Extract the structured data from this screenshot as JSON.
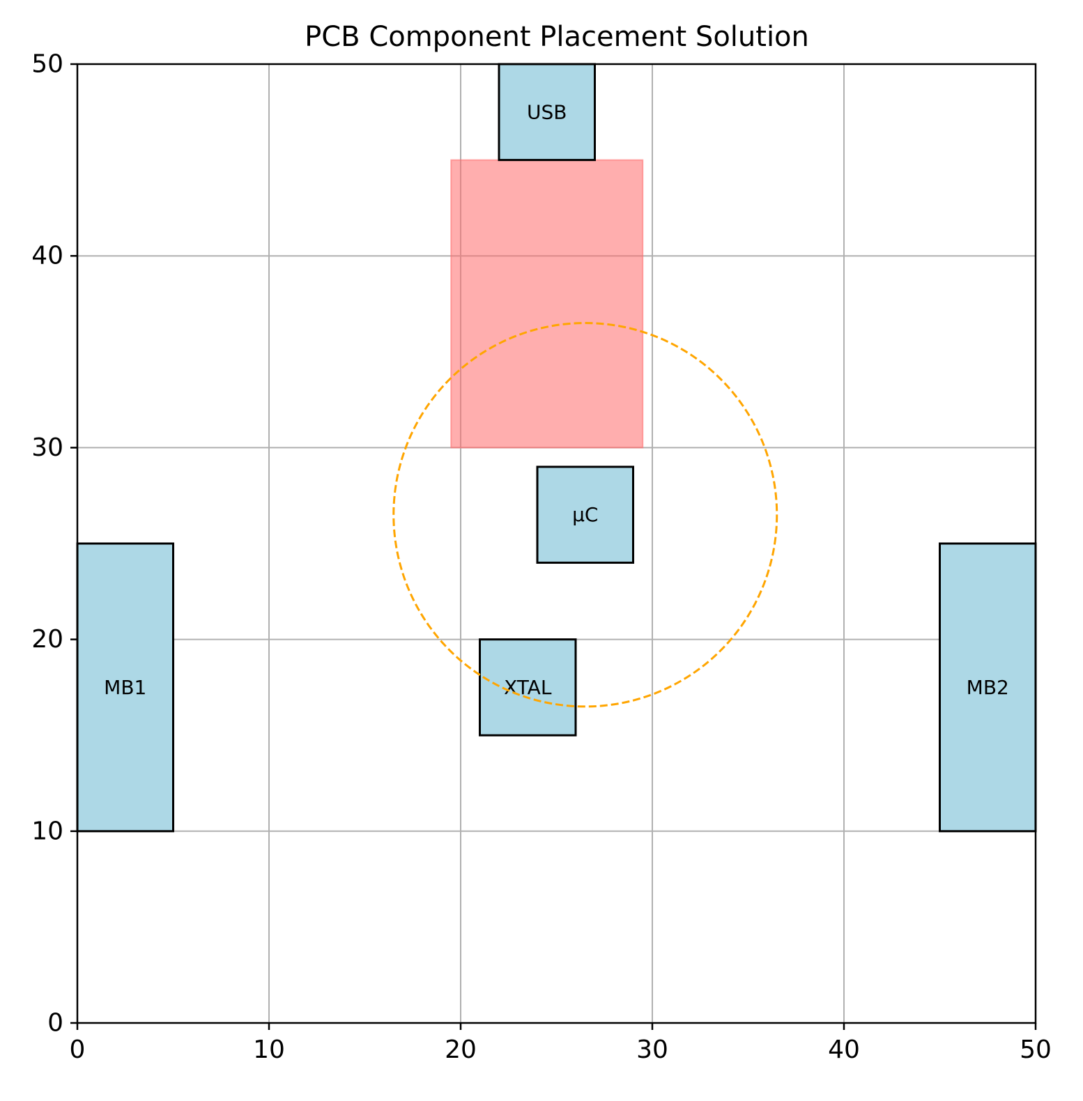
{
  "chart_data": {
    "type": "placement",
    "title": "PCB Component Placement Solution",
    "xlabel": "",
    "ylabel": "",
    "xlim": [
      0,
      50
    ],
    "ylim": [
      0,
      50
    ],
    "xticks": [
      0,
      10,
      20,
      30,
      40,
      50
    ],
    "yticks": [
      0,
      10,
      20,
      30,
      40,
      50
    ],
    "grid": true,
    "components": [
      {
        "label": "USB",
        "x": 22,
        "y": 45,
        "w": 5,
        "h": 5,
        "color": "#add8e6"
      },
      {
        "label": "µC",
        "x": 24,
        "y": 24,
        "w": 5,
        "h": 5,
        "color": "#add8e6"
      },
      {
        "label": "XTAL",
        "x": 21,
        "y": 15,
        "w": 5,
        "h": 5,
        "color": "#add8e6"
      },
      {
        "label": "MB1",
        "x": 0,
        "y": 10,
        "w": 5,
        "h": 15,
        "color": "#add8e6"
      },
      {
        "label": "MB2",
        "x": 45,
        "y": 10,
        "w": 5,
        "h": 15,
        "color": "#add8e6"
      }
    ],
    "keepout_zone": {
      "x": 19.5,
      "y": 30,
      "w": 10,
      "h": 15,
      "color": "#ff6b6b"
    },
    "proximity_circle": {
      "cx": 26.5,
      "cy": 26.5,
      "r": 10,
      "color": "#ffa500"
    }
  }
}
